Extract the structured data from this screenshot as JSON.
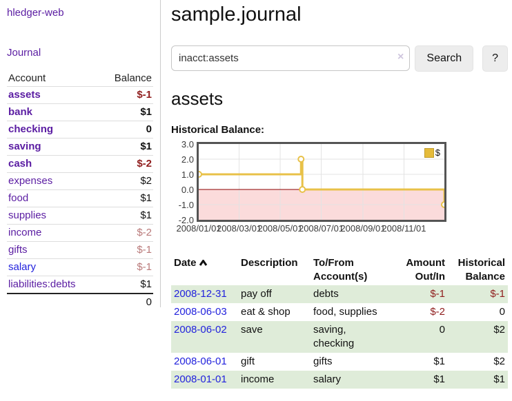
{
  "app": {
    "brand": "hledger-web"
  },
  "sidebar": {
    "journal_link": "Journal",
    "headers": {
      "account": "Account",
      "balance": "Balance"
    },
    "accounts": [
      {
        "name": "assets",
        "balance": "$-1"
      },
      {
        "name": "bank",
        "balance": "$1"
      },
      {
        "name": "checking",
        "balance": "0"
      },
      {
        "name": "saving",
        "balance": "$1"
      },
      {
        "name": "cash",
        "balance": "$-2"
      },
      {
        "name": "expenses",
        "balance": "$2"
      },
      {
        "name": "food",
        "balance": "$1"
      },
      {
        "name": "supplies",
        "balance": "$1"
      },
      {
        "name": "income",
        "balance": "$-2"
      },
      {
        "name": "gifts",
        "balance": "$-1"
      },
      {
        "name": "salary",
        "balance": "$-1"
      },
      {
        "name": "liabilities:debts",
        "balance": "$1"
      }
    ],
    "total": "0"
  },
  "main": {
    "title": "sample.journal",
    "search": {
      "value": "inacct:assets",
      "clear_label": "×",
      "search_button": "Search",
      "help_button": "?"
    },
    "account_heading": "assets",
    "section_label": "Historical Balance:"
  },
  "chart_data": {
    "type": "line",
    "style": "step",
    "title": "Historical Balance:",
    "x_range": [
      "2008-01-01",
      "2008-12-31"
    ],
    "ylim": [
      -2,
      3
    ],
    "y_ticks": [
      {
        "value": 3,
        "label": "3.0"
      },
      {
        "value": 2,
        "label": "2.0"
      },
      {
        "value": 1,
        "label": "1.0"
      },
      {
        "value": 0,
        "label": "0.0"
      },
      {
        "value": -1,
        "label": "-1.0"
      },
      {
        "value": -2,
        "label": "-2.0"
      }
    ],
    "x_ticks": [
      {
        "date": "2008-01-01",
        "label": "2008/01/01"
      },
      {
        "date": "2008-03-01",
        "label": "2008/03/01"
      },
      {
        "date": "2008-05-01",
        "label": "2008/05/01"
      },
      {
        "date": "2008-07-01",
        "label": "2008/07/01"
      },
      {
        "date": "2008-09-01",
        "label": "2008/09/01"
      },
      {
        "date": "2008-11-01",
        "label": "2008/11/01"
      }
    ],
    "series": [
      {
        "name": "$",
        "color": "#e8c148",
        "points": [
          {
            "date": "2008-01-01",
            "value": 1
          },
          {
            "date": "2008-06-01",
            "value": 2
          },
          {
            "date": "2008-06-03",
            "value": 0
          },
          {
            "date": "2008-12-31",
            "value": -1
          }
        ]
      }
    ],
    "legend": {
      "position": "top-right"
    },
    "grid": true,
    "negative_region_color": "#fbdbdb",
    "zero_line_color": "#8b0000",
    "grid_color": "#e3e3e3"
  },
  "register": {
    "headers": {
      "date": "Date",
      "description": "Description",
      "accounts": "To/From Account(s)",
      "amount": "Amount Out/In",
      "balance": "Historical Balance"
    },
    "rows": [
      {
        "date": "2008-12-31",
        "description": "pay off",
        "accounts": "debts",
        "amount": "$-1",
        "balance": "$-1"
      },
      {
        "date": "2008-06-03",
        "description": "eat & shop",
        "accounts": "food, supplies",
        "amount": "$-2",
        "balance": "0"
      },
      {
        "date": "2008-06-02",
        "description": "save",
        "accounts": "saving, checking",
        "amount": "0",
        "balance": "$2"
      },
      {
        "date": "2008-06-01",
        "description": "gift",
        "accounts": "gifts",
        "amount": "$1",
        "balance": "$2"
      },
      {
        "date": "2008-01-01",
        "description": "income",
        "accounts": "salary",
        "amount": "$1",
        "balance": "$1"
      }
    ]
  }
}
